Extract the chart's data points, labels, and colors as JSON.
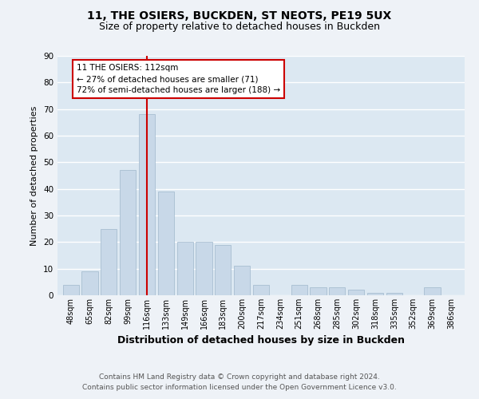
{
  "title1": "11, THE OSIERS, BUCKDEN, ST NEOTS, PE19 5UX",
  "title2": "Size of property relative to detached houses in Buckden",
  "xlabel": "Distribution of detached houses by size in Buckden",
  "ylabel": "Number of detached properties",
  "footer1": "Contains HM Land Registry data © Crown copyright and database right 2024.",
  "footer2": "Contains public sector information licensed under the Open Government Licence v3.0.",
  "categories": [
    "48sqm",
    "65sqm",
    "82sqm",
    "99sqm",
    "116sqm",
    "133sqm",
    "149sqm",
    "166sqm",
    "183sqm",
    "200sqm",
    "217sqm",
    "234sqm",
    "251sqm",
    "268sqm",
    "285sqm",
    "302sqm",
    "318sqm",
    "335sqm",
    "352sqm",
    "369sqm",
    "386sqm"
  ],
  "values": [
    4,
    9,
    25,
    47,
    68,
    39,
    20,
    20,
    19,
    11,
    4,
    0,
    4,
    3,
    3,
    2,
    1,
    1,
    0,
    3,
    0
  ],
  "bar_color": "#c8d8e8",
  "bar_edge_color": "#a0b8cc",
  "marker_index": 4,
  "marker_label": "11 THE OSIERS: 112sqm",
  "annotation_line1": "← 27% of detached houses are smaller (71)",
  "annotation_line2": "72% of semi-detached houses are larger (188) →",
  "marker_color": "#cc0000",
  "annotation_box_edge": "#cc0000",
  "ylim": [
    0,
    90
  ],
  "yticks": [
    0,
    10,
    20,
    30,
    40,
    50,
    60,
    70,
    80,
    90
  ],
  "bg_color": "#eef2f7",
  "plot_bg_color": "#dce8f2",
  "grid_color": "#ffffff",
  "title1_fontsize": 10,
  "title2_fontsize": 9,
  "footer_fontsize": 6.5,
  "ylabel_fontsize": 8,
  "xlabel_fontsize": 9,
  "tick_fontsize": 7,
  "annot_fontsize": 7.5
}
